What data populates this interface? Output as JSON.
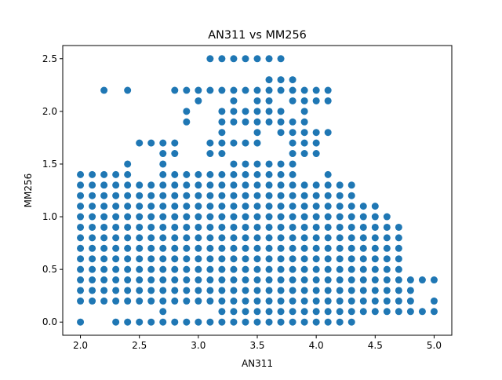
{
  "chart_data": {
    "type": "scatter",
    "title": "AN311 vs MM256",
    "xlabel": "AN311",
    "ylabel": "MM256",
    "xlim": [
      1.85,
      5.15
    ],
    "ylim": [
      -0.125,
      2.625
    ],
    "xticks": [
      2.0,
      2.5,
      3.0,
      3.5,
      4.0,
      4.5,
      5.0
    ],
    "xtick_labels": [
      "2.0",
      "2.5",
      "3.0",
      "3.5",
      "4.0",
      "4.5",
      "5.0"
    ],
    "yticks": [
      0.0,
      0.5,
      1.0,
      1.5,
      2.0,
      2.5
    ],
    "ytick_labels": [
      "0.0",
      "0.5",
      "1.0",
      "1.5",
      "2.0",
      "2.5"
    ],
    "grid": false,
    "legend": false,
    "marker_color": "#1f77b4",
    "columns": [
      {
        "x": 2.0,
        "y": [
          0.0,
          0.2,
          0.3,
          0.4,
          0.5,
          0.6,
          0.7,
          0.8,
          0.9,
          1.0,
          1.1,
          1.2,
          1.3,
          1.4
        ]
      },
      {
        "x": 2.1,
        "y": [
          0.2,
          0.3,
          0.4,
          0.5,
          0.6,
          0.7,
          0.8,
          0.9,
          1.0,
          1.1,
          1.2,
          1.3,
          1.4
        ]
      },
      {
        "x": 2.2,
        "y": [
          0.2,
          0.3,
          0.4,
          0.5,
          0.6,
          0.7,
          0.8,
          0.9,
          1.0,
          1.1,
          1.2,
          1.3,
          1.4,
          2.2
        ]
      },
      {
        "x": 2.3,
        "y": [
          0.0,
          0.2,
          0.3,
          0.4,
          0.5,
          0.6,
          0.7,
          0.8,
          0.9,
          1.0,
          1.1,
          1.2,
          1.3,
          1.4
        ]
      },
      {
        "x": 2.4,
        "y": [
          0.0,
          0.2,
          0.3,
          0.4,
          0.5,
          0.6,
          0.7,
          0.8,
          0.9,
          1.0,
          1.1,
          1.2,
          1.3,
          1.4,
          1.5,
          2.2
        ]
      },
      {
        "x": 2.5,
        "y": [
          0.0,
          0.2,
          0.3,
          0.4,
          0.5,
          0.6,
          0.7,
          0.8,
          0.9,
          1.0,
          1.1,
          1.2,
          1.3,
          1.7
        ]
      },
      {
        "x": 2.6,
        "y": [
          0.0,
          0.2,
          0.3,
          0.4,
          0.5,
          0.6,
          0.7,
          0.8,
          0.9,
          1.0,
          1.1,
          1.2,
          1.3,
          1.7
        ]
      },
      {
        "x": 2.7,
        "y": [
          0.0,
          0.1,
          0.2,
          0.3,
          0.4,
          0.5,
          0.6,
          0.7,
          0.8,
          0.9,
          1.0,
          1.1,
          1.2,
          1.3,
          1.4,
          1.5,
          1.6,
          1.7
        ]
      },
      {
        "x": 2.8,
        "y": [
          0.0,
          0.2,
          0.3,
          0.4,
          0.5,
          0.6,
          0.7,
          0.8,
          0.9,
          1.0,
          1.1,
          1.2,
          1.3,
          1.4,
          1.6,
          1.7,
          2.2
        ]
      },
      {
        "x": 2.9,
        "y": [
          0.0,
          0.2,
          0.3,
          0.4,
          0.5,
          0.6,
          0.7,
          0.8,
          0.9,
          1.0,
          1.1,
          1.2,
          1.3,
          1.4,
          1.9,
          2.0,
          2.2
        ]
      },
      {
        "x": 3.0,
        "y": [
          0.0,
          0.2,
          0.3,
          0.4,
          0.5,
          0.6,
          0.7,
          0.8,
          0.9,
          1.0,
          1.1,
          1.2,
          1.3,
          1.4,
          2.1,
          2.2
        ]
      },
      {
        "x": 3.1,
        "y": [
          0.0,
          0.2,
          0.3,
          0.4,
          0.5,
          0.6,
          0.7,
          0.8,
          0.9,
          1.0,
          1.1,
          1.2,
          1.3,
          1.4,
          1.6,
          1.7,
          2.2,
          2.5
        ]
      },
      {
        "x": 3.2,
        "y": [
          0.0,
          0.1,
          0.2,
          0.3,
          0.4,
          0.5,
          0.6,
          0.7,
          0.8,
          0.9,
          1.0,
          1.1,
          1.2,
          1.3,
          1.4,
          1.6,
          1.7,
          1.8,
          1.9,
          2.0,
          2.2,
          2.5
        ]
      },
      {
        "x": 3.3,
        "y": [
          0.0,
          0.1,
          0.2,
          0.3,
          0.4,
          0.5,
          0.6,
          0.7,
          0.8,
          0.9,
          1.0,
          1.1,
          1.2,
          1.3,
          1.4,
          1.5,
          1.7,
          1.9,
          2.0,
          2.1,
          2.2,
          2.5
        ]
      },
      {
        "x": 3.4,
        "y": [
          0.0,
          0.1,
          0.2,
          0.3,
          0.4,
          0.5,
          0.6,
          0.7,
          0.8,
          0.9,
          1.0,
          1.1,
          1.2,
          1.3,
          1.4,
          1.5,
          1.7,
          1.9,
          2.0,
          2.2,
          2.5
        ]
      },
      {
        "x": 3.5,
        "y": [
          0.0,
          0.1,
          0.2,
          0.3,
          0.4,
          0.5,
          0.6,
          0.7,
          0.8,
          0.9,
          1.0,
          1.1,
          1.2,
          1.3,
          1.4,
          1.5,
          1.7,
          1.8,
          1.9,
          2.0,
          2.1,
          2.2,
          2.5
        ]
      },
      {
        "x": 3.6,
        "y": [
          0.0,
          0.1,
          0.2,
          0.3,
          0.4,
          0.5,
          0.6,
          0.7,
          0.8,
          0.9,
          1.0,
          1.1,
          1.2,
          1.3,
          1.4,
          1.5,
          1.9,
          2.0,
          2.1,
          2.2,
          2.3,
          2.5
        ]
      },
      {
        "x": 3.7,
        "y": [
          0.0,
          0.1,
          0.2,
          0.3,
          0.4,
          0.5,
          0.6,
          0.7,
          0.8,
          0.9,
          1.0,
          1.1,
          1.2,
          1.3,
          1.4,
          1.5,
          1.8,
          1.9,
          2.0,
          2.2,
          2.3,
          2.5
        ]
      },
      {
        "x": 3.8,
        "y": [
          0.0,
          0.1,
          0.2,
          0.3,
          0.4,
          0.5,
          0.6,
          0.7,
          0.8,
          0.9,
          1.0,
          1.1,
          1.2,
          1.3,
          1.4,
          1.5,
          1.6,
          1.7,
          1.8,
          1.9,
          2.1,
          2.2,
          2.3
        ]
      },
      {
        "x": 3.9,
        "y": [
          0.0,
          0.1,
          0.2,
          0.3,
          0.4,
          0.5,
          0.6,
          0.7,
          0.8,
          0.9,
          1.0,
          1.1,
          1.2,
          1.3,
          1.6,
          1.7,
          1.8,
          1.9,
          2.0,
          2.1,
          2.2
        ]
      },
      {
        "x": 4.0,
        "y": [
          0.0,
          0.1,
          0.2,
          0.3,
          0.4,
          0.5,
          0.6,
          0.7,
          0.8,
          0.9,
          1.0,
          1.1,
          1.2,
          1.3,
          1.6,
          1.7,
          1.8,
          2.1,
          2.2
        ]
      },
      {
        "x": 4.1,
        "y": [
          0.0,
          0.1,
          0.2,
          0.3,
          0.4,
          0.5,
          0.6,
          0.7,
          0.8,
          0.9,
          1.0,
          1.1,
          1.2,
          1.3,
          1.4,
          1.8,
          2.1,
          2.2
        ]
      },
      {
        "x": 4.2,
        "y": [
          0.0,
          0.1,
          0.2,
          0.3,
          0.4,
          0.5,
          0.6,
          0.7,
          0.8,
          0.9,
          1.0,
          1.1,
          1.2,
          1.3
        ]
      },
      {
        "x": 4.3,
        "y": [
          0.0,
          0.1,
          0.2,
          0.3,
          0.4,
          0.5,
          0.6,
          0.7,
          0.8,
          0.9,
          1.0,
          1.1,
          1.2,
          1.3
        ]
      },
      {
        "x": 4.4,
        "y": [
          0.1,
          0.2,
          0.3,
          0.4,
          0.5,
          0.6,
          0.7,
          0.8,
          0.9,
          1.0,
          1.1
        ]
      },
      {
        "x": 4.5,
        "y": [
          0.1,
          0.2,
          0.3,
          0.4,
          0.5,
          0.6,
          0.7,
          0.8,
          0.9,
          1.0,
          1.1
        ]
      },
      {
        "x": 4.6,
        "y": [
          0.1,
          0.2,
          0.3,
          0.4,
          0.5,
          0.6,
          0.7,
          0.8,
          0.9,
          1.0
        ]
      },
      {
        "x": 4.7,
        "y": [
          0.1,
          0.2,
          0.3,
          0.4,
          0.5,
          0.6,
          0.7,
          0.8,
          0.9
        ]
      },
      {
        "x": 4.8,
        "y": [
          0.1,
          0.2,
          0.3,
          0.4
        ]
      },
      {
        "x": 4.9,
        "y": [
          0.1,
          0.4
        ]
      },
      {
        "x": 5.0,
        "y": [
          0.1,
          0.2,
          0.4
        ]
      }
    ]
  }
}
